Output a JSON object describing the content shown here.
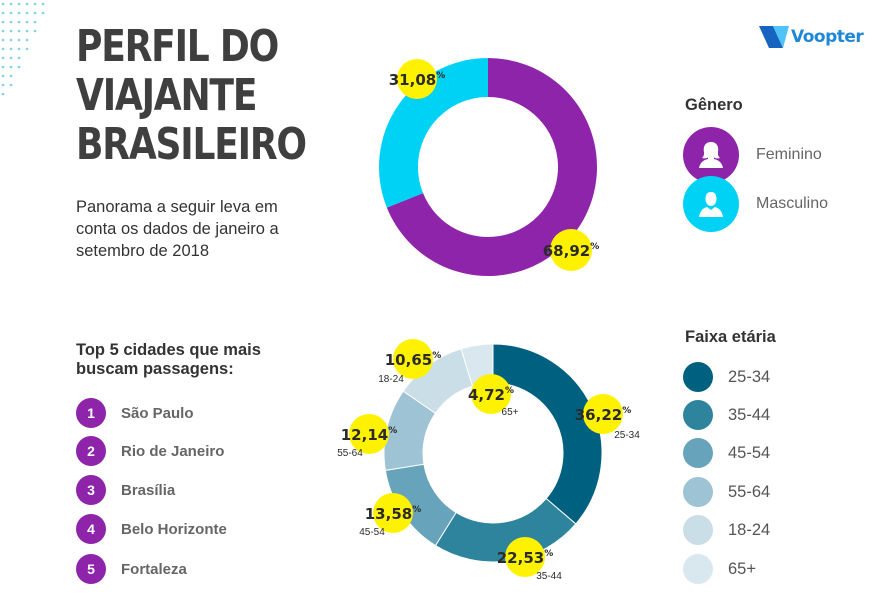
{
  "title": [
    "PERFIL DO",
    "VIAJANTE",
    "BRASILEIRO"
  ],
  "subtitle": "Panorama a seguir leva em conta os dados de janeiro a setembro de 2018",
  "logo": {
    "brand": "Voopter",
    "colors": {
      "dark": "#1565c0",
      "light": "#4fc3f7",
      "text": "#1e88d6"
    }
  },
  "cities": {
    "heading": "Top 5 cidades que mais buscam passagens:",
    "items": [
      {
        "rank": "1",
        "name": "São Paulo"
      },
      {
        "rank": "2",
        "name": "Rio de Janeiro"
      },
      {
        "rank": "3",
        "name": "Brasília"
      },
      {
        "rank": "4",
        "name": "Belo Horizonte"
      },
      {
        "rank": "5",
        "name": "Fortaleza"
      }
    ],
    "badge_color": "#8e24aa"
  },
  "gender_legend": {
    "title": "Gênero",
    "items": [
      {
        "label": "Feminino",
        "color": "#8e24aa",
        "icon": "female-person-icon"
      },
      {
        "label": "Masculino",
        "color": "#00d2f5",
        "icon": "male-person-icon"
      }
    ]
  },
  "age_legend": {
    "title": "Faixa etária",
    "items": [
      {
        "label": "25-34",
        "color": "#00607f"
      },
      {
        "label": "35-44",
        "color": "#2f849d"
      },
      {
        "label": "45-54",
        "color": "#67a4bb"
      },
      {
        "label": "55-64",
        "color": "#9dc3d4"
      },
      {
        "label": "18-24",
        "color": "#c9dee6"
      },
      {
        "label": "65+",
        "color": "#d9e8ee"
      }
    ]
  },
  "chart_data": [
    {
      "type": "pie",
      "series": [
        {
          "name": "Feminino",
          "value": 68.92,
          "label": "68,92",
          "color": "#8e24aa"
        },
        {
          "name": "Masculino",
          "value": 31.08,
          "label": "31,08",
          "color": "#00d2f5"
        }
      ]
    },
    {
      "type": "pie",
      "series": [
        {
          "name": "25-34",
          "value": 36.22,
          "label": "36,22",
          "color": "#00607f"
        },
        {
          "name": "35-44",
          "value": 22.53,
          "label": "22,53",
          "color": "#2f849d"
        },
        {
          "name": "45-54",
          "value": 13.58,
          "label": "13,58",
          "color": "#67a4bb"
        },
        {
          "name": "55-64",
          "value": 12.14,
          "label": "12,14",
          "color": "#9dc3d4"
        },
        {
          "name": "18-24",
          "value": 10.65,
          "label": "10,65",
          "color": "#c9dee6"
        },
        {
          "name": "65+",
          "value": 4.72,
          "label": "4,72",
          "color": "#d9e8ee"
        }
      ]
    }
  ],
  "percent_sign": "%",
  "badge_color": "#fff200"
}
